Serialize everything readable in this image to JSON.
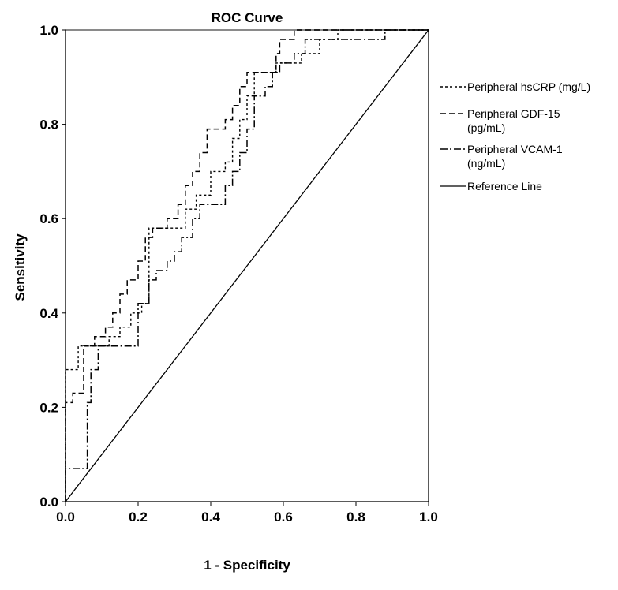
{
  "chart_data": {
    "type": "line",
    "title": "ROC Curve",
    "xlabel": "1 - Specificity",
    "ylabel": "Sensitivity",
    "xlim": [
      0,
      1
    ],
    "ylim": [
      0,
      1
    ],
    "x_ticks": [
      "0.0",
      "0.2",
      "0.4",
      "0.6",
      "0.8",
      "1.0"
    ],
    "y_ticks": [
      "0.0",
      "0.2",
      "0.4",
      "0.6",
      "0.8",
      "1.0"
    ],
    "grid": false,
    "legend_position": "right",
    "series": [
      {
        "name": "Peripheral hsCRP (mg/L)",
        "line_style": "short-dash",
        "points": [
          [
            0.0,
            0.0
          ],
          [
            0.0,
            0.28
          ],
          [
            0.035,
            0.28
          ],
          [
            0.035,
            0.33
          ],
          [
            0.07,
            0.33
          ],
          [
            0.07,
            0.33
          ],
          [
            0.12,
            0.33
          ],
          [
            0.12,
            0.35
          ],
          [
            0.15,
            0.35
          ],
          [
            0.15,
            0.37
          ],
          [
            0.18,
            0.37
          ],
          [
            0.18,
            0.4
          ],
          [
            0.21,
            0.4
          ],
          [
            0.21,
            0.42
          ],
          [
            0.23,
            0.42
          ],
          [
            0.23,
            0.58
          ],
          [
            0.33,
            0.58
          ],
          [
            0.33,
            0.62
          ],
          [
            0.36,
            0.62
          ],
          [
            0.36,
            0.65
          ],
          [
            0.4,
            0.65
          ],
          [
            0.4,
            0.7
          ],
          [
            0.44,
            0.7
          ],
          [
            0.44,
            0.72
          ],
          [
            0.46,
            0.72
          ],
          [
            0.46,
            0.77
          ],
          [
            0.48,
            0.77
          ],
          [
            0.48,
            0.81
          ],
          [
            0.5,
            0.81
          ],
          [
            0.5,
            0.86
          ],
          [
            0.52,
            0.86
          ],
          [
            0.52,
            0.91
          ],
          [
            0.58,
            0.91
          ],
          [
            0.58,
            0.93
          ],
          [
            0.65,
            0.93
          ],
          [
            0.65,
            0.95
          ],
          [
            0.7,
            0.95
          ],
          [
            0.7,
            0.98
          ],
          [
            0.75,
            0.98
          ],
          [
            0.75,
            1.0
          ],
          [
            1.0,
            1.0
          ]
        ]
      },
      {
        "name": "Peripheral GDF-15 (pg/mL)",
        "line_style": "long-dash",
        "points": [
          [
            0.0,
            0.0
          ],
          [
            0.0,
            0.21
          ],
          [
            0.02,
            0.21
          ],
          [
            0.02,
            0.23
          ],
          [
            0.05,
            0.23
          ],
          [
            0.05,
            0.33
          ],
          [
            0.08,
            0.33
          ],
          [
            0.08,
            0.35
          ],
          [
            0.11,
            0.35
          ],
          [
            0.11,
            0.37
          ],
          [
            0.13,
            0.37
          ],
          [
            0.13,
            0.4
          ],
          [
            0.15,
            0.4
          ],
          [
            0.15,
            0.44
          ],
          [
            0.17,
            0.44
          ],
          [
            0.17,
            0.47
          ],
          [
            0.2,
            0.47
          ],
          [
            0.2,
            0.51
          ],
          [
            0.22,
            0.51
          ],
          [
            0.22,
            0.56
          ],
          [
            0.24,
            0.56
          ],
          [
            0.24,
            0.58
          ],
          [
            0.28,
            0.58
          ],
          [
            0.28,
            0.6
          ],
          [
            0.31,
            0.6
          ],
          [
            0.31,
            0.63
          ],
          [
            0.33,
            0.63
          ],
          [
            0.33,
            0.67
          ],
          [
            0.35,
            0.67
          ],
          [
            0.35,
            0.7
          ],
          [
            0.37,
            0.7
          ],
          [
            0.37,
            0.74
          ],
          [
            0.39,
            0.74
          ],
          [
            0.39,
            0.79
          ],
          [
            0.44,
            0.79
          ],
          [
            0.44,
            0.81
          ],
          [
            0.46,
            0.81
          ],
          [
            0.46,
            0.84
          ],
          [
            0.48,
            0.84
          ],
          [
            0.48,
            0.88
          ],
          [
            0.5,
            0.88
          ],
          [
            0.5,
            0.91
          ],
          [
            0.58,
            0.91
          ],
          [
            0.58,
            0.95
          ],
          [
            0.59,
            0.95
          ],
          [
            0.59,
            0.98
          ],
          [
            0.63,
            0.98
          ],
          [
            0.63,
            1.0
          ],
          [
            1.0,
            1.0
          ]
        ]
      },
      {
        "name": "Peripheral VCAM-1 (ng/mL)",
        "line_style": "dash-dot",
        "points": [
          [
            0.0,
            0.0
          ],
          [
            0.0,
            0.07
          ],
          [
            0.06,
            0.07
          ],
          [
            0.06,
            0.21
          ],
          [
            0.07,
            0.21
          ],
          [
            0.07,
            0.28
          ],
          [
            0.09,
            0.28
          ],
          [
            0.09,
            0.33
          ],
          [
            0.2,
            0.33
          ],
          [
            0.2,
            0.42
          ],
          [
            0.23,
            0.42
          ],
          [
            0.23,
            0.47
          ],
          [
            0.25,
            0.47
          ],
          [
            0.25,
            0.49
          ],
          [
            0.28,
            0.49
          ],
          [
            0.28,
            0.51
          ],
          [
            0.3,
            0.51
          ],
          [
            0.3,
            0.53
          ],
          [
            0.32,
            0.53
          ],
          [
            0.32,
            0.56
          ],
          [
            0.35,
            0.56
          ],
          [
            0.35,
            0.6
          ],
          [
            0.37,
            0.6
          ],
          [
            0.37,
            0.63
          ],
          [
            0.44,
            0.63
          ],
          [
            0.44,
            0.67
          ],
          [
            0.46,
            0.67
          ],
          [
            0.46,
            0.7
          ],
          [
            0.48,
            0.7
          ],
          [
            0.48,
            0.74
          ],
          [
            0.5,
            0.74
          ],
          [
            0.5,
            0.79
          ],
          [
            0.52,
            0.79
          ],
          [
            0.52,
            0.86
          ],
          [
            0.55,
            0.86
          ],
          [
            0.55,
            0.88
          ],
          [
            0.57,
            0.88
          ],
          [
            0.57,
            0.91
          ],
          [
            0.59,
            0.91
          ],
          [
            0.59,
            0.93
          ],
          [
            0.63,
            0.93
          ],
          [
            0.63,
            0.95
          ],
          [
            0.66,
            0.95
          ],
          [
            0.66,
            0.98
          ],
          [
            0.88,
            0.98
          ],
          [
            0.88,
            1.0
          ],
          [
            1.0,
            1.0
          ]
        ]
      },
      {
        "name": "Reference Line",
        "line_style": "solid",
        "points": [
          [
            0.0,
            0.0
          ],
          [
            1.0,
            1.0
          ]
        ]
      }
    ]
  },
  "legend": {
    "items": [
      {
        "lines": [
          "Peripheral hsCRP (mg/L)"
        ]
      },
      {
        "lines": [
          "Peripheral GDF-15",
          "(pg/mL)"
        ]
      },
      {
        "lines": [
          "Peripheral VCAM-1",
          "(ng/mL)"
        ]
      },
      {
        "lines": [
          "Reference Line"
        ]
      }
    ]
  }
}
